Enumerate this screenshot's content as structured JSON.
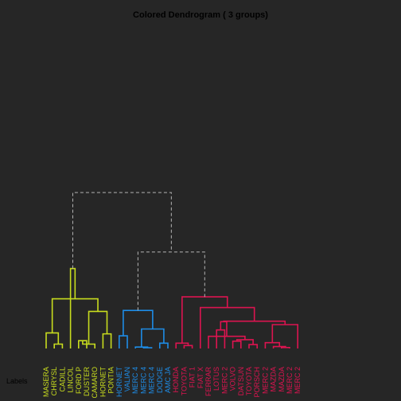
{
  "chart_data": {
    "type": "dendrogram",
    "title": "Colored Dendrogram ( 3  groups)",
    "side_label": "Labels",
    "group_colors": [
      "#c8dc1e",
      "#1e8ce6",
      "#dc1450"
    ],
    "upper_link_color": "#b4b4b4",
    "upper_link_style": "dashed",
    "background": "#262626",
    "height_range": [
      0,
      100
    ],
    "leaves": [
      {
        "label": "MASERA",
        "group": 0
      },
      {
        "label": "CHRYSL",
        "group": 0
      },
      {
        "label": "CADILL",
        "group": 0
      },
      {
        "label": "LINCOL",
        "group": 0
      },
      {
        "label": "FORD P",
        "group": 0
      },
      {
        "label": "DUSTER",
        "group": 0
      },
      {
        "label": "CAMARO",
        "group": 0
      },
      {
        "label": "HORNET",
        "group": 0
      },
      {
        "label": "PONTIA",
        "group": 0
      },
      {
        "label": "HORNET",
        "group": 1
      },
      {
        "label": "VALIAN",
        "group": 1
      },
      {
        "label": "MERC 4",
        "group": 1
      },
      {
        "label": "MERC 4",
        "group": 1
      },
      {
        "label": "MERC 4",
        "group": 1
      },
      {
        "label": "DODGE",
        "group": 1
      },
      {
        "label": "AMC JA",
        "group": 1
      },
      {
        "label": "HONDA",
        "group": 2
      },
      {
        "label": "TOYOTA",
        "group": 2
      },
      {
        "label": "FIAT 1",
        "group": 2
      },
      {
        "label": "FIAT X",
        "group": 2
      },
      {
        "label": "FERRAR",
        "group": 2
      },
      {
        "label": "LOTUS",
        "group": 2
      },
      {
        "label": "MERC 2",
        "group": 2
      },
      {
        "label": "VOLVO",
        "group": 2
      },
      {
        "label": "DATSUN",
        "group": 2
      },
      {
        "label": "TOYOTA",
        "group": 2
      },
      {
        "label": "PORSCH",
        "group": 2
      },
      {
        "label": "MERC 2",
        "group": 2
      },
      {
        "label": "MAZDA",
        "group": 2
      },
      {
        "label": "MAZDA",
        "group": 2
      },
      {
        "label": "MERC 2",
        "group": 2
      },
      {
        "label": "MERC 2",
        "group": 2
      }
    ],
    "merges": [
      {
        "a": 1,
        "b": 2,
        "h": 4.5,
        "c": 0
      },
      {
        "a": 0,
        "b": "m0",
        "h": 16,
        "c": 0
      },
      {
        "a": 4,
        "b": 5,
        "h": 8,
        "c": 0
      },
      {
        "a": 6,
        "b": "m2",
        "h": 4.5,
        "c": 0
      },
      {
        "a": 7,
        "b": 8,
        "h": 15,
        "c": 0
      },
      {
        "a": "m3",
        "b": "m4",
        "h": 38,
        "c": 0
      },
      {
        "a": "m1",
        "b": "m5",
        "h": 51,
        "c": 0
      },
      {
        "a": 3,
        "b": "m6",
        "h": 82,
        "c": 0
      },
      {
        "a": 9,
        "b": 10,
        "h": 13,
        "c": 1
      },
      {
        "a": 12,
        "b": 13,
        "h": 0.8,
        "c": 1
      },
      {
        "a": 11,
        "b": "m9",
        "h": 1.5,
        "c": 1
      },
      {
        "a": 14,
        "b": 15,
        "h": 5.5,
        "c": 1
      },
      {
        "a": "m10",
        "b": "m11",
        "h": 20,
        "c": 1
      },
      {
        "a": "m8",
        "b": "m12",
        "h": 39,
        "c": 1
      },
      {
        "a": 17,
        "b": 18,
        "h": 3,
        "c": 2
      },
      {
        "a": 16,
        "b": "m14",
        "h": 5.5,
        "c": 2
      },
      {
        "a": 21,
        "b": 22,
        "h": 19,
        "c": 2
      },
      {
        "a": 23,
        "b": 24,
        "h": 7.5,
        "c": 2
      },
      {
        "a": 25,
        "b": 26,
        "h": 4,
        "c": 2
      },
      {
        "a": "m17",
        "b": "m18",
        "h": 9,
        "c": 2
      },
      {
        "a": 20,
        "b": "m19",
        "h": 12.5,
        "c": 2
      },
      {
        "a": "m16",
        "b": "m20",
        "h": 27.5,
        "c": 2
      },
      {
        "a": 29,
        "b": 30,
        "h": 1,
        "c": 2
      },
      {
        "a": 28,
        "b": "m22",
        "h": 2,
        "c": 2
      },
      {
        "a": 27,
        "b": "m23",
        "h": 6,
        "c": 2
      },
      {
        "a": 31,
        "b": "m24",
        "h": 24.5,
        "c": 2
      },
      {
        "a": "m21",
        "b": "m25",
        "h": 28,
        "c": 2
      },
      {
        "a": 19,
        "b": "m26",
        "h": 42,
        "c": 2
      },
      {
        "a": "m15",
        "b": "m27",
        "h": 53,
        "c": 2
      },
      {
        "a": "m13",
        "b": "m28",
        "h": 99,
        "c": -1
      },
      {
        "a": "m7",
        "b": "m29",
        "h": 160,
        "c": -1
      }
    ]
  }
}
